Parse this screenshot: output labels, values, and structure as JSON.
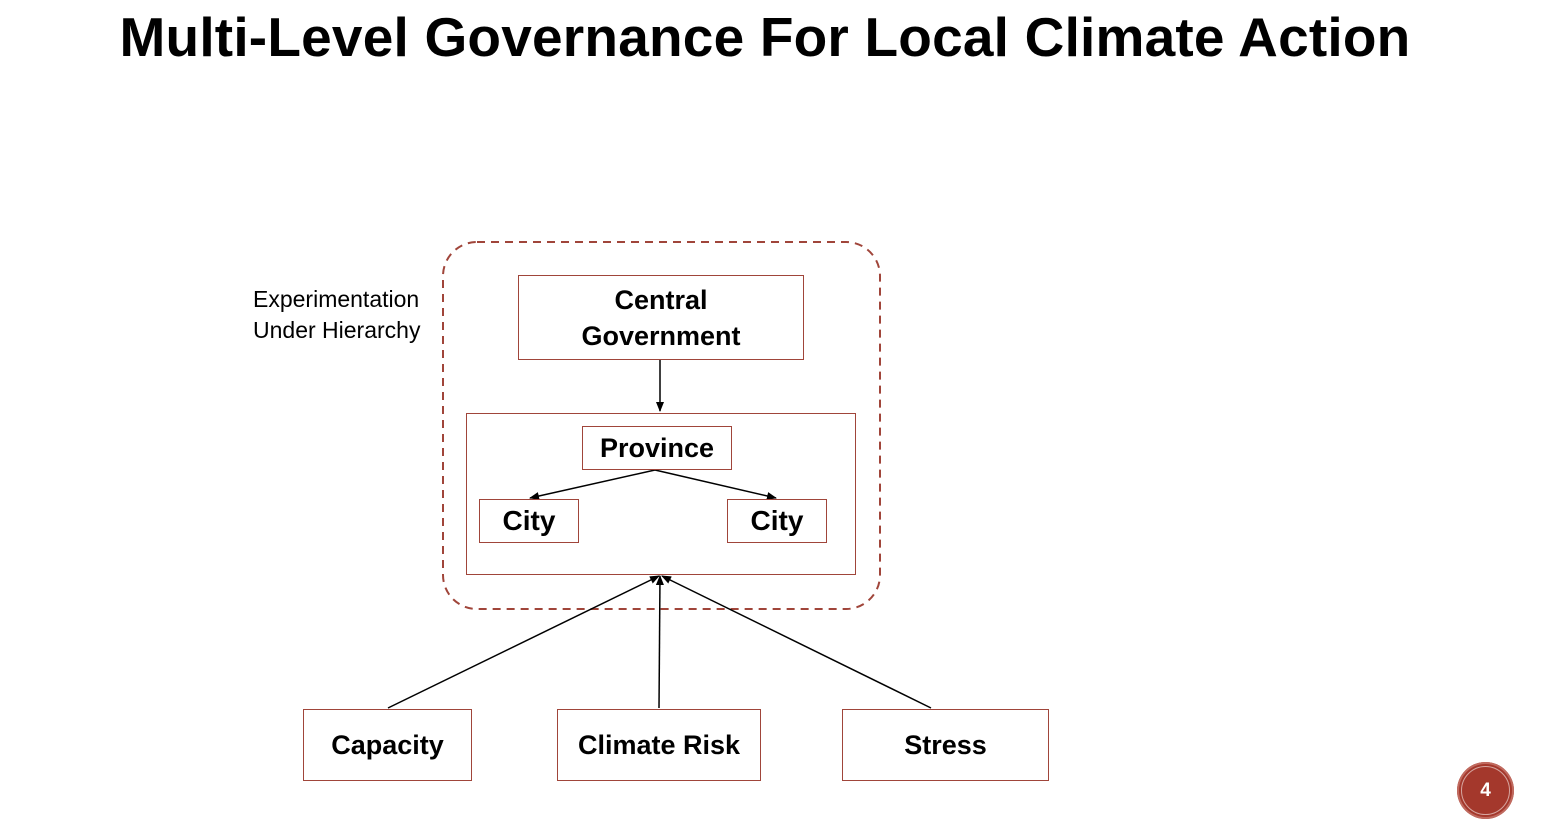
{
  "slide": {
    "title": "Multi-Level Governance For Local Climate Action",
    "page_number": "4"
  },
  "diagram": {
    "group_label_line1": "Experimentation",
    "group_label_line2": "Under Hierarchy",
    "central_line1": "Central",
    "central_line2": "Government",
    "province": "Province",
    "city_left": "City",
    "city_right": "City",
    "factors": [
      "Capacity",
      "Climate Risk",
      "Stress"
    ]
  },
  "colors": {
    "box_border": "#a0453a",
    "dashed_border": "#a0453a",
    "arrow": "#000000",
    "badge": "#a4382c"
  }
}
